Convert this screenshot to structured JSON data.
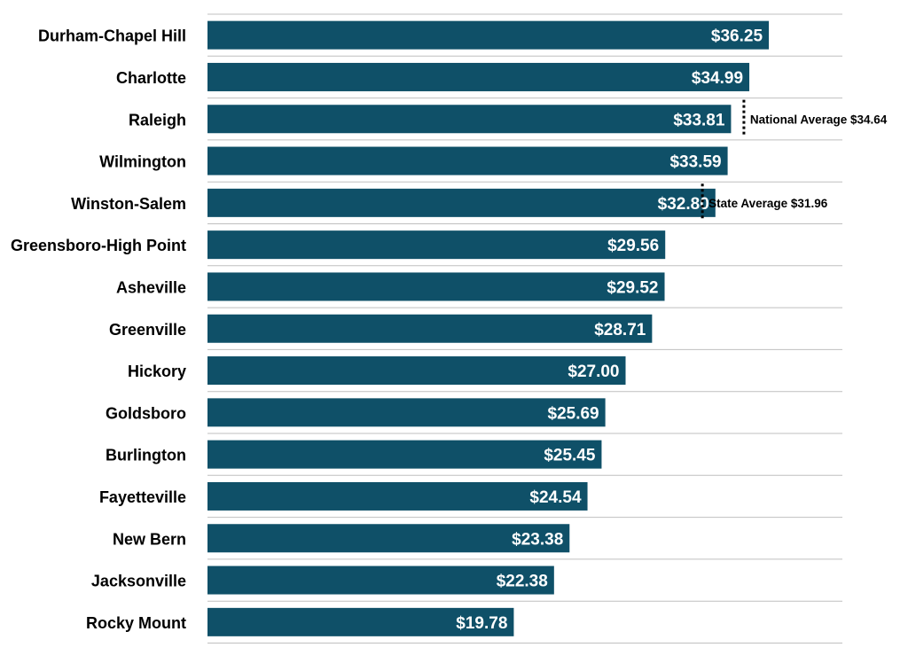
{
  "chart_data": {
    "type": "bar",
    "orientation": "horizontal",
    "categories": [
      "Durham-Chapel Hill",
      "Charlotte",
      "Raleigh",
      "Wilmington",
      "Winston-Salem",
      "Greensboro-High Point",
      "Asheville",
      "Greenville",
      "Hickory",
      "Goldsboro",
      "Burlington",
      "Fayetteville",
      "New Bern",
      "Jacksonville",
      "Rocky Mount"
    ],
    "values": [
      36.25,
      34.99,
      33.81,
      33.59,
      32.8,
      29.56,
      29.52,
      28.71,
      27.0,
      25.69,
      25.45,
      24.54,
      23.38,
      22.38,
      19.78
    ],
    "value_labels": [
      "$36.25",
      "$34.99",
      "$33.81",
      "$33.59",
      "$32.80",
      "$29.56",
      "$29.52",
      "$28.71",
      "$27.00",
      "$25.69",
      "$25.45",
      "$24.54",
      "$23.38",
      "$22.38",
      "$19.78"
    ],
    "xlim": [
      0,
      41
    ],
    "reference_lines": [
      {
        "label": "National Average $34.64",
        "value": 34.64,
        "category_index": 2
      },
      {
        "label": "State Average $31.96",
        "value": 31.96,
        "category_index": 4
      }
    ],
    "grid": true,
    "legend": "none",
    "colors": {
      "bar": "#0f5068",
      "bar_label": "#ffffff",
      "gridline": "#bfbfbf",
      "category_label": "#000000",
      "reference_line": "#000000"
    }
  }
}
